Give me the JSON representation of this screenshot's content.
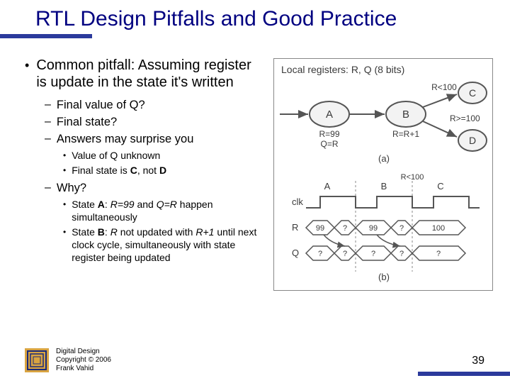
{
  "title": "RTL Design Pitfalls and Good Practice",
  "bullets": {
    "main": "Common pitfall: Assuming register is update in the state it's written",
    "sub1": "Final value of Q?",
    "sub2": "Final state?",
    "sub3": "Answers may surprise you",
    "sub3a": "Value of Q unknown",
    "sub3b": "Final state is C, not D",
    "sub4": "Why?",
    "sub4a": "State A: R=99 and Q=R happen simultaneously",
    "sub4b": "State B: R not updated with R+1 until next clock cycle, simultaneously with state register being updated"
  },
  "footer": {
    "l1": "Digital Design",
    "l2": "Copyright © 2006",
    "l3": "Frank Vahid"
  },
  "page": "39",
  "diagram": {
    "caption": "Local registers: R, Q (8 bits)",
    "nodes": {
      "A": "A",
      "B": "B",
      "C": "C",
      "D": "D"
    },
    "edge_labels": {
      "a_action": "R=99\nQ=R",
      "b_action": "R=R+1",
      "bc": "R<100",
      "bd": "R>=100"
    },
    "sub_a": "(a)",
    "sub_b": "(b)",
    "timing": {
      "clk": "clk",
      "R": "R",
      "Q": "Q",
      "states": [
        "A",
        "B",
        "C"
      ],
      "top_label": "R<100",
      "r_vals": [
        "99",
        "?",
        "99",
        "?",
        "100"
      ],
      "q_vals": [
        "?",
        "?",
        "?",
        "?",
        "?"
      ]
    },
    "colors": {
      "stroke": "#555555",
      "text": "#3a3a3a",
      "bg": "#ffffff"
    }
  }
}
